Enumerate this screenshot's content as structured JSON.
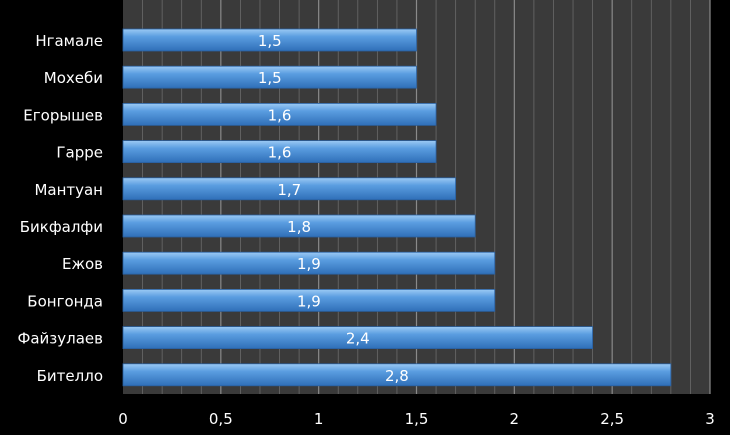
{
  "chart_data": {
    "type": "bar",
    "orientation": "horizontal",
    "categories": [
      "Нгамале",
      "Мохеби",
      "Егорышев",
      "Гарре",
      "Мантуан",
      "Бикфалфи",
      "Ежов",
      "Бонгонда",
      "Файзулаев",
      "Бителло"
    ],
    "values": [
      1.5,
      1.5,
      1.6,
      1.6,
      1.7,
      1.8,
      1.9,
      1.9,
      2.4,
      2.8
    ],
    "data_labels": [
      "1,5",
      "1,5",
      "1,6",
      "1,6",
      "1,7",
      "1,8",
      "1,9",
      "1,9",
      "2,4",
      "2,8"
    ],
    "xlim": [
      0,
      3
    ],
    "x_ticks": [
      0,
      0.5,
      1,
      1.5,
      2,
      2.5,
      3
    ],
    "x_tick_labels": [
      "0",
      "0,5",
      "1",
      "1,5",
      "2",
      "2,5",
      "3"
    ],
    "grid": "vertical",
    "colors": {
      "background": "#000000",
      "plot_area": "#3a3a3a",
      "bar": "#4a8fd8",
      "bar_highlight": "#8cc0f0",
      "grid": "#6a6a6a",
      "text": "#ffffff"
    }
  }
}
